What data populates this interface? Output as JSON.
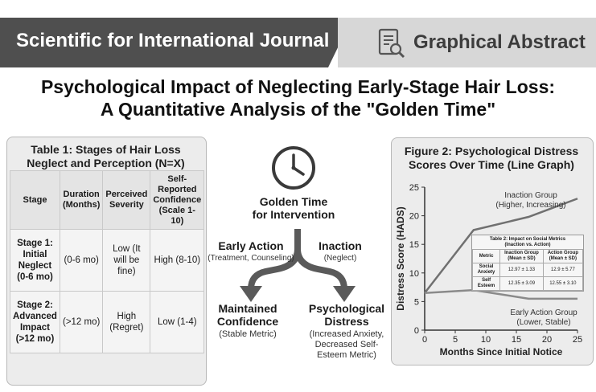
{
  "header": {
    "journal": "Scientific for International Journal",
    "abstract_label": "Graphical Abstract"
  },
  "title": {
    "line1": "Psychological Impact of Neglecting Early-Stage Hair Loss:",
    "line2": "A Quantitative Analysis of the \"Golden Time\""
  },
  "table1": {
    "title_line1": "Table 1: Stages of Hair Loss",
    "title_line2": "Neglect and Perception (N=X)",
    "headers": [
      "Stage",
      "Duration (Months)",
      "Perceived Severity",
      "Self-Reported Confidence (Scale 1-10)"
    ],
    "rows": [
      [
        "Stage 1: Initial Neglect (0-6 mo)",
        "(0-6 mo)",
        "Low (It will be fine)",
        "High (8-10)"
      ],
      [
        "Stage 2: Advanced Impact (>12 mo)",
        "(>12 mo)",
        "High (Regret)",
        "Low (1-4)"
      ]
    ]
  },
  "center": {
    "clock_icon": "clock-icon",
    "golden_line1": "Golden Time",
    "golden_line2": "for Intervention",
    "early_action": "Early Action",
    "early_action_sub": "(Treatment, Counseling)",
    "inaction": "Inaction",
    "inaction_sub": "(Neglect)",
    "outcome_left_line1": "Maintained",
    "outcome_left_line2": "Confidence",
    "outcome_left_sub": "(Stable Metric)",
    "outcome_right_line1": "Psychological",
    "outcome_right_line2": "Distress",
    "outcome_right_sub1": "(Increased Anxiety,",
    "outcome_right_sub2": "Decreased Self-",
    "outcome_right_sub3": "Esteem Metric)"
  },
  "figure2": {
    "title_line1": "Figure 2: Psychological Distress",
    "title_line2": "Scores Over Time (Line Graph)",
    "inaction_label1": "Inaction Group",
    "inaction_label2": "(Higher, Increasing)",
    "early_label1": "Early Action Group",
    "early_label2": "(Lower, Stable)"
  },
  "inset_table": {
    "caption1": "Table 2: Impact on Social Metrics",
    "caption2": "(Inaction vs. Action)",
    "headers": [
      "Metric",
      "Inaction Group (Mean ± SD)",
      "Action Group (Mean ± SD)"
    ],
    "rows": [
      [
        "Social Anxiety",
        "12.97 ± 1.33",
        "12.9 ± 5.77"
      ],
      [
        "Self Esteem",
        "12.35 ± 3.09",
        "12.55 ± 3.10"
      ]
    ]
  },
  "chart_data": {
    "type": "line",
    "title": "Figure 2: Psychological Distress Scores Over Time (Line Graph)",
    "xlabel": "Months Since Initial Notice",
    "ylabel": "Distress Score (HADS)",
    "xlim": [
      0,
      25
    ],
    "ylim": [
      0,
      25
    ],
    "xticks": [
      0,
      5,
      10,
      15,
      20,
      25
    ],
    "yticks": [
      0,
      5,
      10,
      15,
      20,
      25
    ],
    "series": [
      {
        "name": "Inaction Group",
        "color": "#707070",
        "x": [
          0,
          8,
          17,
          25
        ],
        "y": [
          6.5,
          17.5,
          19.8,
          23
        ]
      },
      {
        "name": "Early Action Group",
        "color": "#8a8a8a",
        "x": [
          0,
          8,
          17,
          25
        ],
        "y": [
          6.5,
          7,
          5.5,
          5.5
        ]
      }
    ],
    "grid": false
  }
}
